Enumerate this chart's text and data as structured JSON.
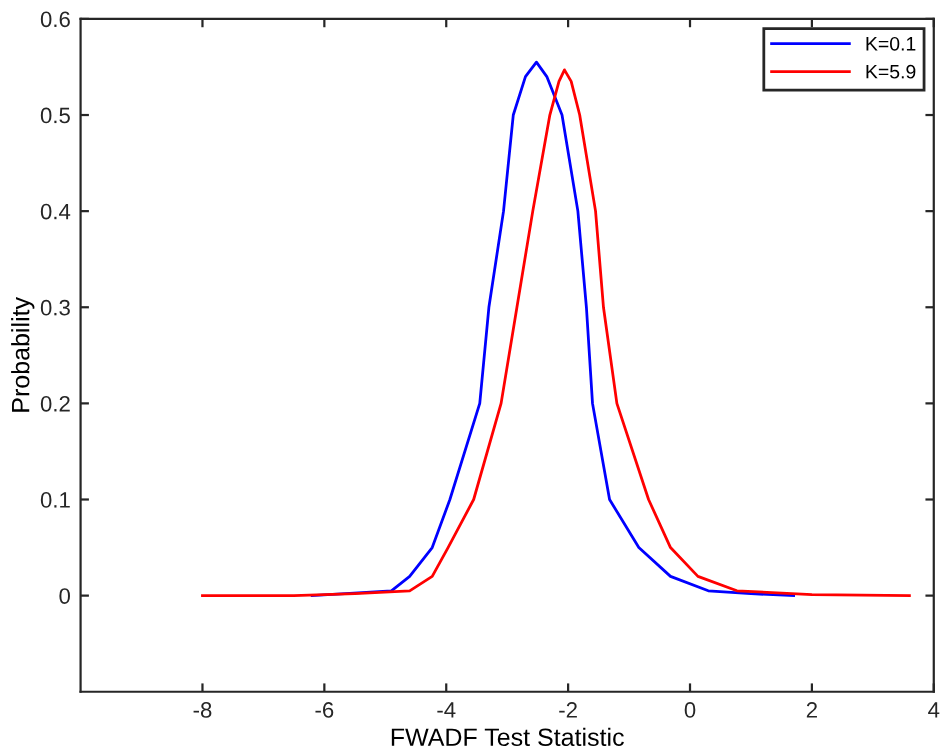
{
  "chart_data": {
    "type": "line",
    "xlabel": "FWADF Test Statistic",
    "ylabel": "Probability",
    "xlim": [
      -10,
      4
    ],
    "ylim": [
      -0.1,
      0.6
    ],
    "xticks": [
      -8,
      -6,
      -4,
      -2,
      0,
      2,
      4
    ],
    "yticks": [
      0,
      0.1,
      0.2,
      0.3,
      0.4,
      0.5,
      0.6
    ],
    "grid": false,
    "legend": "top right",
    "marker": "none",
    "line_style": "solid",
    "series": [
      {
        "name": "K=0.1",
        "color": "#0000ff",
        "x": [
          -6.2,
          -4.9,
          -4.6,
          -4.23,
          -3.94,
          -3.45,
          -3.3,
          -3.06,
          -2.9,
          -2.7,
          -2.52,
          -2.35,
          -2.1,
          -1.84,
          -1.7,
          -1.6,
          -1.32,
          -0.84,
          -0.32,
          0.3,
          1.0,
          1.7
        ],
        "values": [
          0,
          0.005,
          0.02,
          0.05,
          0.1,
          0.2,
          0.3,
          0.4,
          0.5,
          0.54,
          0.555,
          0.54,
          0.5,
          0.4,
          0.3,
          0.2,
          0.1,
          0.05,
          0.02,
          0.005,
          0.002,
          0
        ]
      },
      {
        "name": "K=5.9",
        "color": "#ff0000",
        "x": [
          -8,
          -6.5,
          -5.5,
          -4.6,
          -4.23,
          -3.97,
          -3.55,
          -3.1,
          -2.84,
          -2.58,
          -2.3,
          -2.15,
          -2.06,
          -1.95,
          -1.81,
          -1.55,
          -1.42,
          -1.2,
          -0.68,
          -0.32,
          0.13,
          0.77,
          2.0,
          3.6
        ],
        "values": [
          0,
          0,
          0.002,
          0.005,
          0.02,
          0.05,
          0.1,
          0.2,
          0.3,
          0.4,
          0.5,
          0.535,
          0.547,
          0.535,
          0.5,
          0.4,
          0.3,
          0.2,
          0.1,
          0.05,
          0.02,
          0.005,
          0.001,
          0
        ]
      }
    ]
  }
}
